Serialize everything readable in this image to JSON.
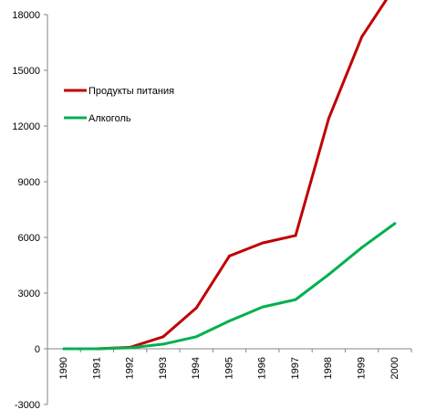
{
  "chart_data": {
    "type": "line",
    "x": [
      "1990",
      "1991",
      "1992",
      "1993",
      "1994",
      "1995",
      "1996",
      "1997",
      "1998",
      "1999",
      "2000"
    ],
    "series": [
      {
        "name": "Продукты питания",
        "color": "#C00000",
        "values": [
          0,
          0,
          80,
          650,
          2200,
          5000,
          5700,
          6100,
          12400,
          16800,
          19500
        ]
      },
      {
        "name": "Алкоголь",
        "color": "#00B050",
        "values": [
          0,
          0,
          50,
          250,
          650,
          1500,
          2250,
          2650,
          4000,
          5450,
          6750
        ]
      }
    ],
    "yticks": [
      "18000",
      "15000",
      "12000",
      "9000",
      "6000",
      "3000",
      "0",
      "-3000"
    ],
    "ylim": [
      -3000,
      18000
    ],
    "legend_position": "top-left",
    "grid": false
  }
}
